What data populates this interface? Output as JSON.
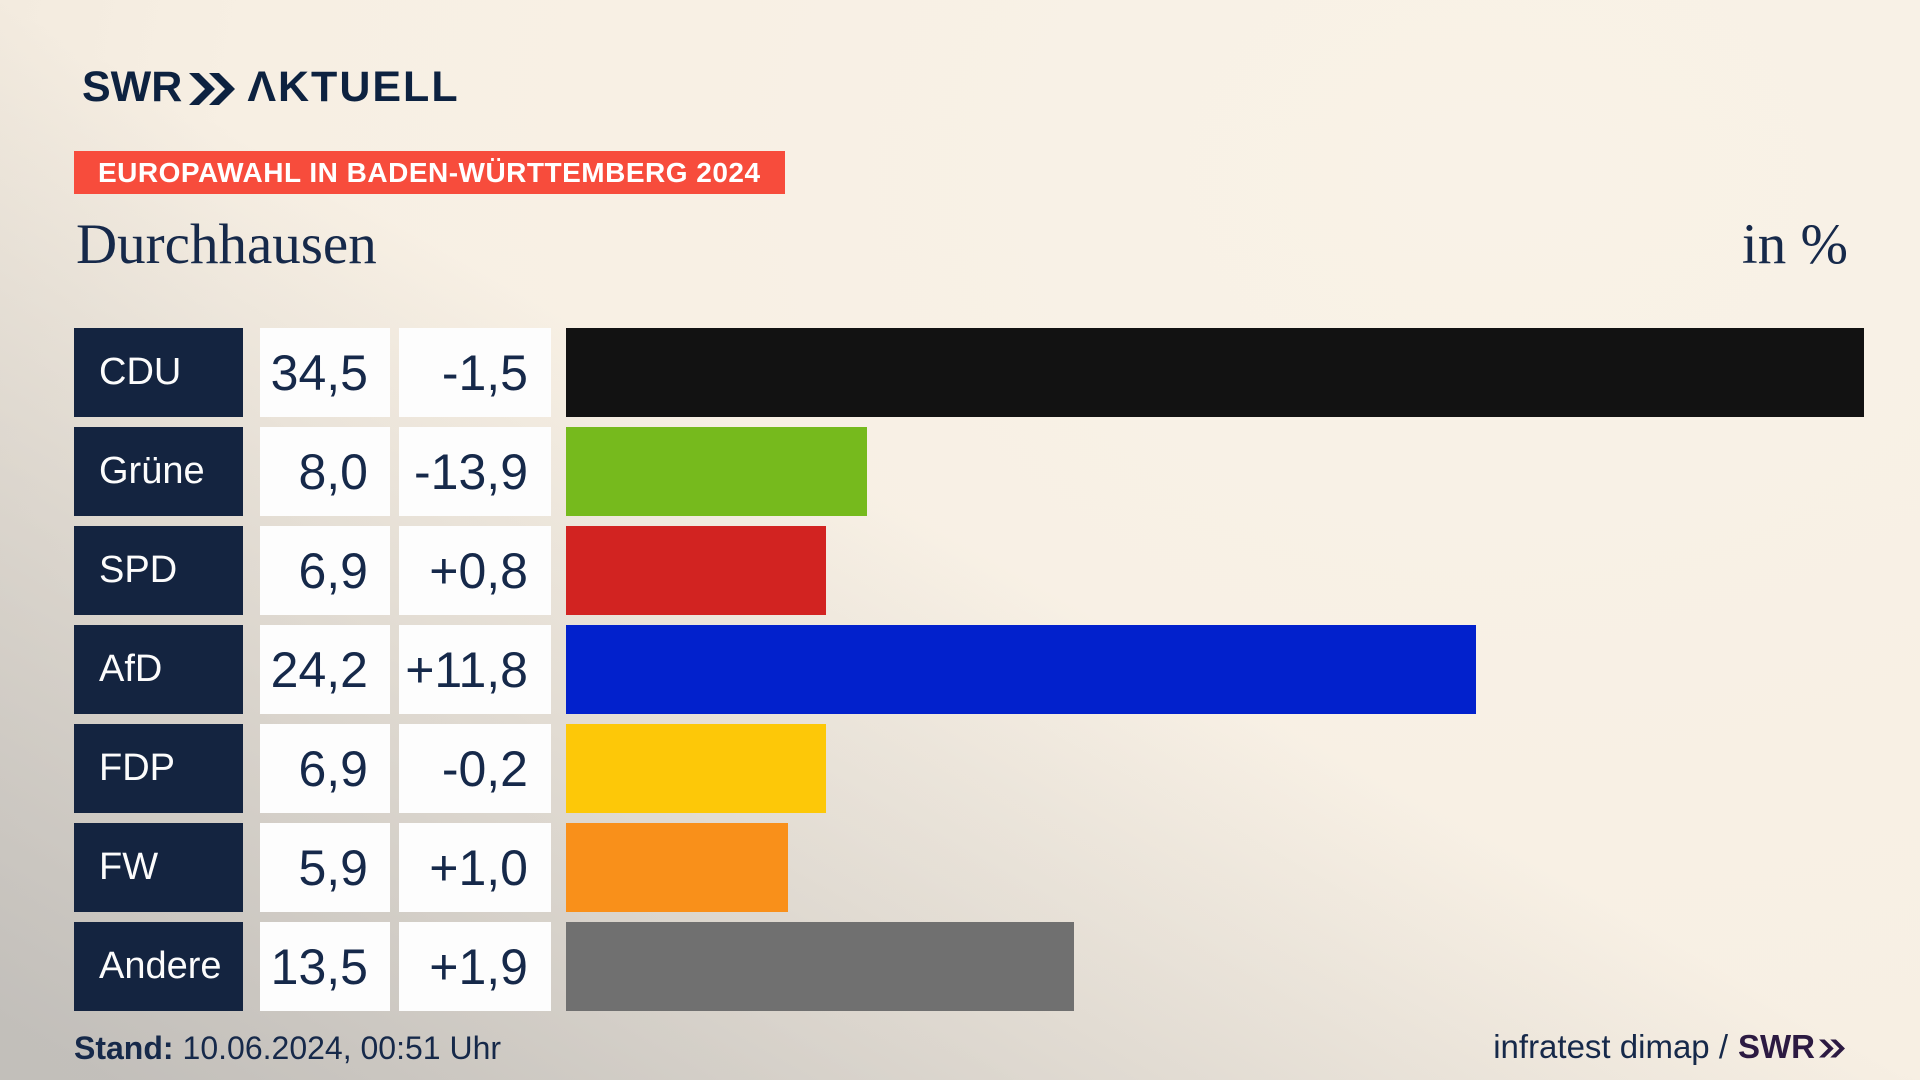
{
  "header": {
    "logo_brand": "SWR",
    "logo_suffix": "ΛKTUELL",
    "banner": "EUROPAWAHL IN BADEN-WÜRTTEMBERG 2024"
  },
  "title": "Durchhausen",
  "unit_label": "in %",
  "footer": {
    "stand_label": "Stand:",
    "stand_value": "10.06.2024, 00:51 Uhr",
    "source_text": "infratest dimap /",
    "source_brand": "SWR"
  },
  "colors": {
    "navy_box": "#142440",
    "text_navy": "#16294a",
    "logo_navy": "#0d2240",
    "brand_purple": "#2c1a42",
    "banner_red": "#f74c3c",
    "box_white": "#fdfdfd",
    "bg_cream": "#f7efe3",
    "bg_gray": "#c5c2be"
  },
  "chart_data": {
    "type": "bar",
    "orientation": "horizontal",
    "title": "Durchhausen",
    "unit": "in %",
    "legend": "none",
    "grid": false,
    "max_value": 34.5,
    "categories": [
      "CDU",
      "Grüne",
      "SPD",
      "AfD",
      "FDP",
      "FW",
      "Andere"
    ],
    "values": [
      34.5,
      8.0,
      6.9,
      24.2,
      6.9,
      5.9,
      13.5
    ],
    "display_values": [
      "34,5",
      "8,0",
      "6,9",
      "24,2",
      "6,9",
      "5,9",
      "13,5"
    ],
    "changes": [
      "-1,5",
      "-13,9",
      "+0,8",
      "+11,8",
      "-0,2",
      "+1,0",
      "+1,9"
    ],
    "bar_colors": [
      "#121212",
      "#76ba1d",
      "#d22321",
      "#0221cc",
      "#fdc808",
      "#f9901a",
      "#707070"
    ]
  }
}
